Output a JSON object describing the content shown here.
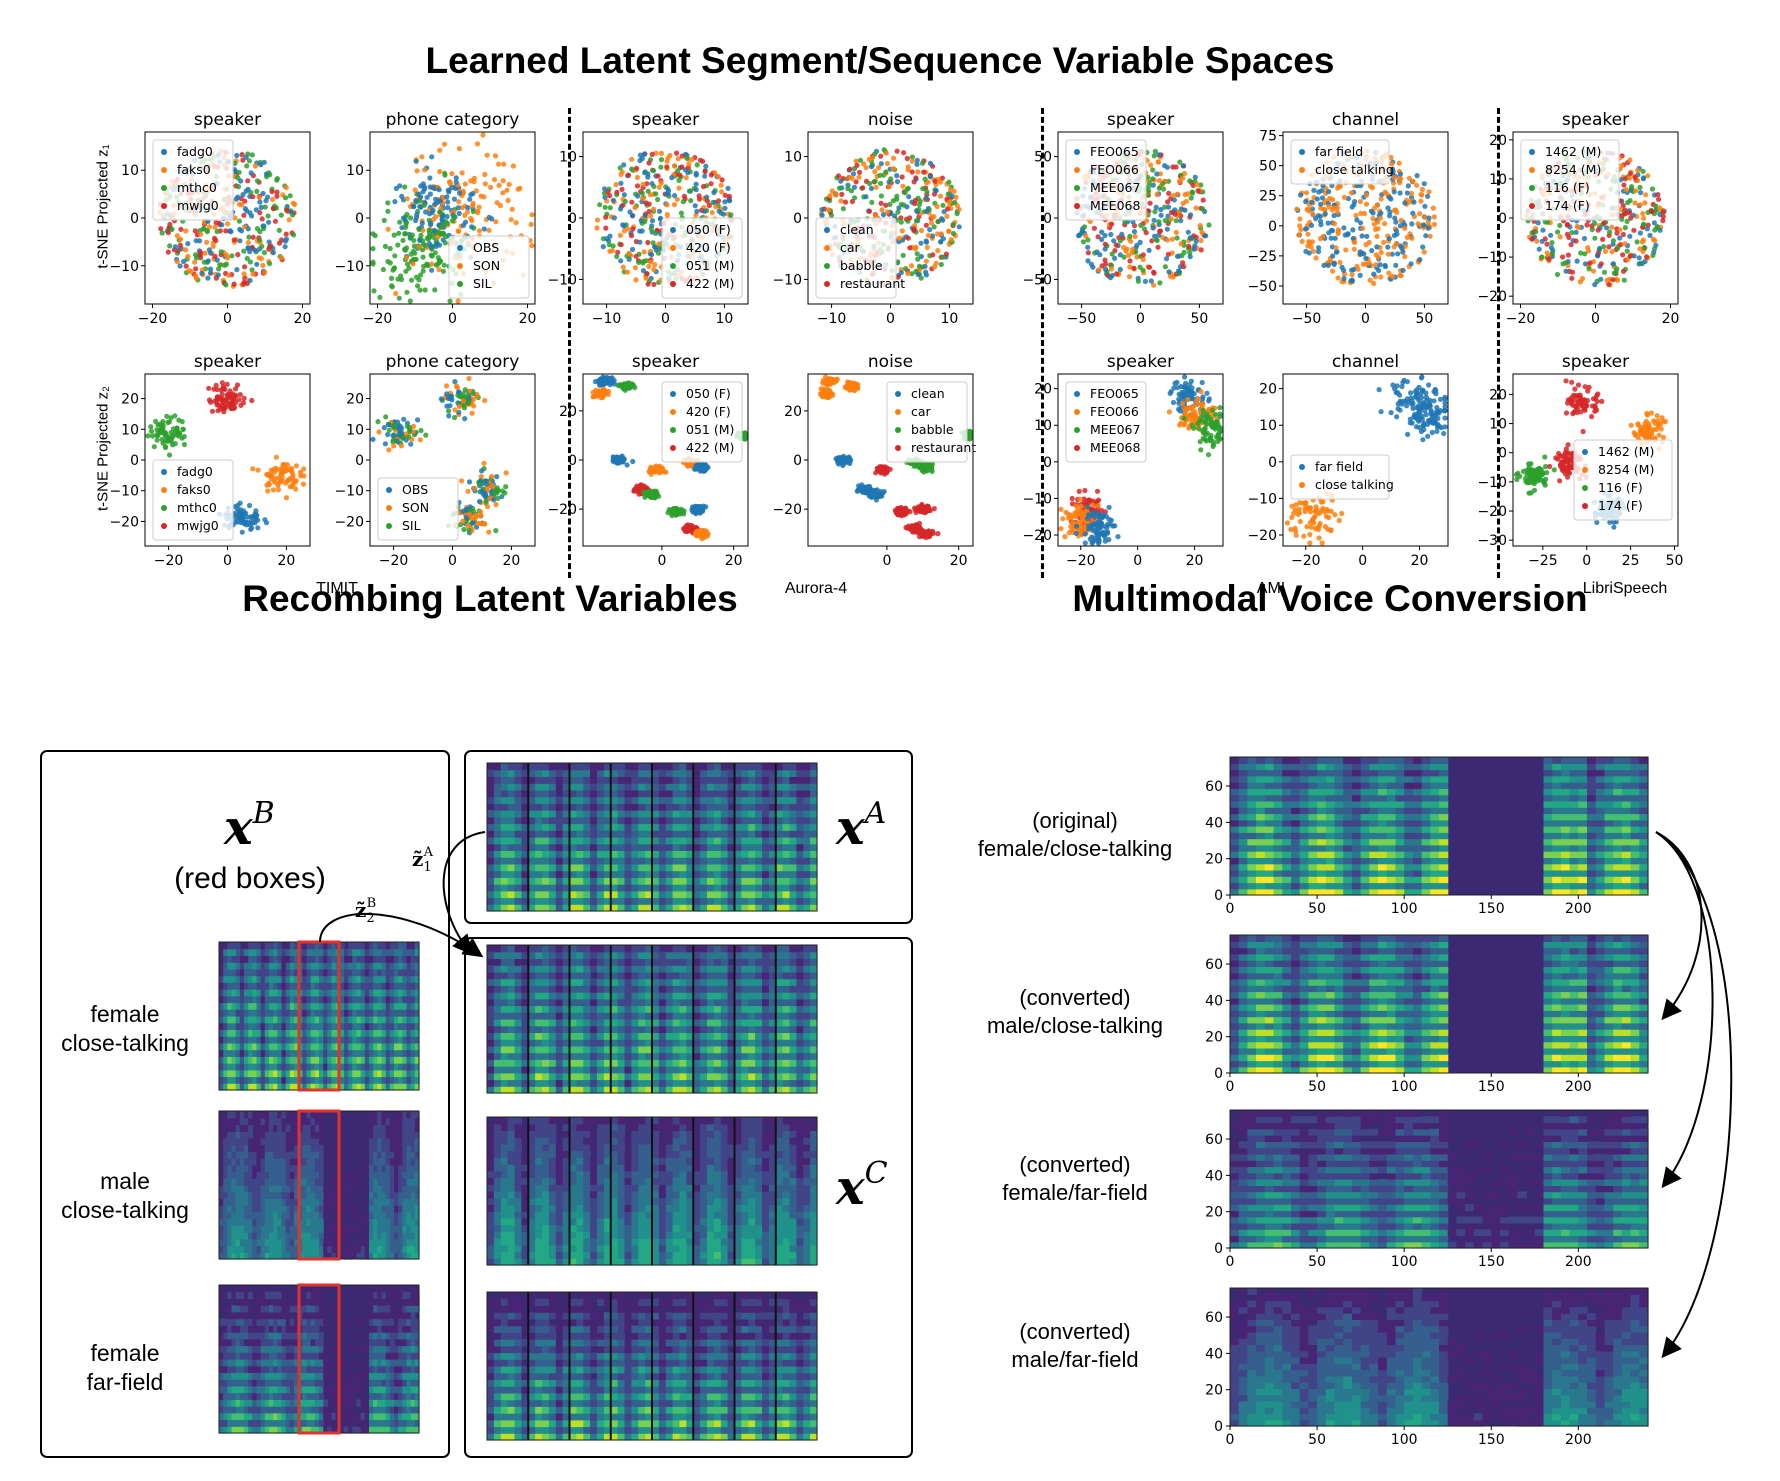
{
  "titles": {
    "top": "Learned Latent Segment/Sequence Variable Spaces",
    "recomb": "Recombing Latent Variables",
    "voice": "Multimodal Voice Conversion"
  },
  "y_titles": {
    "row1": "t-SNE Projected z₁",
    "row2": "t-SNE Projected z₂"
  },
  "dataset_labels": [
    "TIMIT",
    "Aurora-4",
    "AMI",
    "LibriSpeech"
  ],
  "recomb": {
    "xB": "x",
    "xB_sup": "B",
    "red_boxes": "(red boxes)",
    "xA": "x",
    "xA_sup": "A",
    "xC": "x",
    "xC_sup": "C",
    "z1": "z̃",
    "z1_sub": "1",
    "z1_sup": "A",
    "z2": "z̃",
    "z2_sub": "2",
    "z2_sup": "B",
    "conditions": [
      "female\nclose-talking",
      "male\nclose-talking",
      "female\nfar-field"
    ]
  },
  "voice": {
    "labels": [
      "(original)\nfemale/close-talking",
      "(converted)\nmale/close-talking",
      "(converted)\nfemale/far-field",
      "(converted)\nmale/far-field"
    ],
    "xticks": [
      "0",
      "50",
      "100",
      "150",
      "200"
    ],
    "yticks": [
      "0",
      "20",
      "40",
      "60"
    ]
  },
  "colors": {
    "blue": "#1f77b4",
    "orange": "#ff7f0e",
    "green": "#2ca02c",
    "red": "#d62728",
    "box_red": "#e0332c"
  },
  "chart_data": [
    {
      "type": "scatter",
      "dataset": "TIMIT",
      "latent": "z1",
      "title": "speaker",
      "legend": [
        "fadg0",
        "faks0",
        "mthc0",
        "mwjg0"
      ],
      "legend_loc": "upper left",
      "xticks": [
        "−20",
        "0",
        "20"
      ],
      "yticks": [
        "10",
        "0",
        "−10"
      ],
      "xlim": [
        -22,
        22
      ],
      "ylim": [
        -18,
        18
      ],
      "pattern": "mixed"
    },
    {
      "type": "scatter",
      "dataset": "TIMIT",
      "latent": "z1",
      "title": "phone category",
      "legend": [
        "OBS",
        "SON",
        "SIL"
      ],
      "legend_loc": "lower right",
      "xticks": [
        "−20",
        "0",
        "20"
      ],
      "yticks": [
        "10",
        "0",
        "−10"
      ],
      "xlim": [
        -22,
        22
      ],
      "ylim": [
        -18,
        18
      ],
      "pattern": "phone1"
    },
    {
      "type": "scatter",
      "dataset": "Aurora-4",
      "latent": "z1",
      "title": "speaker",
      "legend": [
        "050 (F)",
        "420 (F)",
        "051 (M)",
        "422 (M)"
      ],
      "legend_loc": "lower right",
      "xticks": [
        "−10",
        "0",
        "10"
      ],
      "yticks": [
        "10",
        "0",
        "−10"
      ],
      "xlim": [
        -14,
        14
      ],
      "ylim": [
        -14,
        14
      ],
      "pattern": "mixed"
    },
    {
      "type": "scatter",
      "dataset": "Aurora-4",
      "latent": "z1",
      "title": "noise",
      "legend": [
        "clean",
        "car",
        "babble",
        "restaurant"
      ],
      "legend_loc": "lower left",
      "xticks": [
        "−10",
        "0",
        "10"
      ],
      "yticks": [
        "10",
        "0",
        "−10"
      ],
      "xlim": [
        -14,
        14
      ],
      "ylim": [
        -14,
        14
      ],
      "pattern": "mixed"
    },
    {
      "type": "scatter",
      "dataset": "AMI",
      "latent": "z1",
      "title": "speaker",
      "legend": [
        "FEO065",
        "FEO066",
        "MEE067",
        "MEE068"
      ],
      "legend_loc": "upper left",
      "xticks": [
        "−50",
        "0",
        "50"
      ],
      "yticks": [
        "50",
        "0",
        "−50"
      ],
      "xlim": [
        -70,
        70
      ],
      "ylim": [
        -70,
        70
      ],
      "pattern": "mixed"
    },
    {
      "type": "scatter",
      "dataset": "AMI",
      "latent": "z1",
      "title": "channel",
      "legend": [
        "far field",
        "close talking"
      ],
      "legend_loc": "upper left",
      "xticks": [
        "−50",
        "0",
        "50"
      ],
      "yticks": [
        "75",
        "50",
        "25",
        "0",
        "−25",
        "−50"
      ],
      "xlim": [
        -70,
        70
      ],
      "ylim": [
        -65,
        78
      ],
      "pattern": "two"
    },
    {
      "type": "scatter",
      "dataset": "LibriSpeech",
      "latent": "z1",
      "title": "speaker",
      "legend": [
        "1462 (M)",
        "8254 (M)",
        "116 (F)",
        "174 (F)"
      ],
      "legend_loc": "upper left",
      "xticks": [
        "−20",
        "0",
        "20"
      ],
      "yticks": [
        "20",
        "10",
        "0",
        "−10",
        "−20"
      ],
      "xlim": [
        -22,
        22
      ],
      "ylim": [
        -22,
        22
      ],
      "pattern": "mixed"
    },
    {
      "type": "scatter",
      "dataset": "TIMIT",
      "latent": "z2",
      "title": "speaker",
      "legend": [
        "fadg0",
        "faks0",
        "mthc0",
        "mwjg0"
      ],
      "legend_loc": "lower left",
      "xticks": [
        "−20",
        "0",
        "20"
      ],
      "yticks": [
        "20",
        "10",
        "0",
        "−10",
        "−20"
      ],
      "xlim": [
        -28,
        28
      ],
      "ylim": [
        -28,
        28
      ],
      "pattern": "clusters_timit"
    },
    {
      "type": "scatter",
      "dataset": "TIMIT",
      "latent": "z2",
      "title": "phone category",
      "legend": [
        "OBS",
        "SON",
        "SIL"
      ],
      "legend_loc": "lower left",
      "xticks": [
        "−20",
        "0",
        "20"
      ],
      "yticks": [
        "20",
        "10",
        "0",
        "−10",
        "−20"
      ],
      "xlim": [
        -28,
        28
      ],
      "ylim": [
        -28,
        28
      ],
      "pattern": "clusters_phone"
    },
    {
      "type": "scatter",
      "dataset": "Aurora-4",
      "latent": "z2",
      "title": "speaker",
      "legend": [
        "050 (F)",
        "420 (F)",
        "051 (M)",
        "422 (M)"
      ],
      "legend_loc": "upper right",
      "xticks": [
        "0",
        "20"
      ],
      "yticks": [
        "20",
        "0",
        "−20"
      ],
      "xlim": [
        -22,
        24
      ],
      "ylim": [
        -35,
        35
      ],
      "pattern": "clusters_aurora"
    },
    {
      "type": "scatter",
      "dataset": "Aurora-4",
      "latent": "z2",
      "title": "noise",
      "legend": [
        "clean",
        "car",
        "babble",
        "restaurant"
      ],
      "legend_loc": "upper right",
      "xticks": [
        "0",
        "20"
      ],
      "yticks": [
        "20",
        "0",
        "−20"
      ],
      "xlim": [
        -22,
        24
      ],
      "ylim": [
        -35,
        35
      ],
      "pattern": "clusters_aurora2"
    },
    {
      "type": "scatter",
      "dataset": "AMI",
      "latent": "z2",
      "title": "speaker",
      "legend": [
        "FEO065",
        "FEO066",
        "MEE067",
        "MEE068"
      ],
      "legend_loc": "upper left",
      "xticks": [
        "−20",
        "0",
        "20"
      ],
      "yticks": [
        "20",
        "10",
        "0",
        "−10",
        "−20"
      ],
      "xlim": [
        -28,
        30
      ],
      "ylim": [
        -23,
        24
      ],
      "pattern": "clusters_ami"
    },
    {
      "type": "scatter",
      "dataset": "AMI",
      "latent": "z2",
      "title": "channel",
      "legend": [
        "far field",
        "close talking"
      ],
      "legend_loc": "center left",
      "xticks": [
        "−20",
        "0",
        "20"
      ],
      "yticks": [
        "20",
        "10",
        "0",
        "−10",
        "−20"
      ],
      "xlim": [
        -28,
        30
      ],
      "ylim": [
        -23,
        24
      ],
      "pattern": "clusters_ami2"
    },
    {
      "type": "scatter",
      "dataset": "LibriSpeech",
      "latent": "z2",
      "title": "speaker",
      "legend": [
        "1462 (M)",
        "8254 (M)",
        "116 (F)",
        "174 (F)"
      ],
      "legend_loc": "center right",
      "xticks": [
        "−25",
        "0",
        "25",
        "50"
      ],
      "yticks": [
        "20",
        "10",
        "0",
        "−10",
        "−20",
        "−30"
      ],
      "xlim": [
        -42,
        52
      ],
      "ylim": [
        -32,
        27
      ],
      "pattern": "clusters_libri"
    }
  ]
}
